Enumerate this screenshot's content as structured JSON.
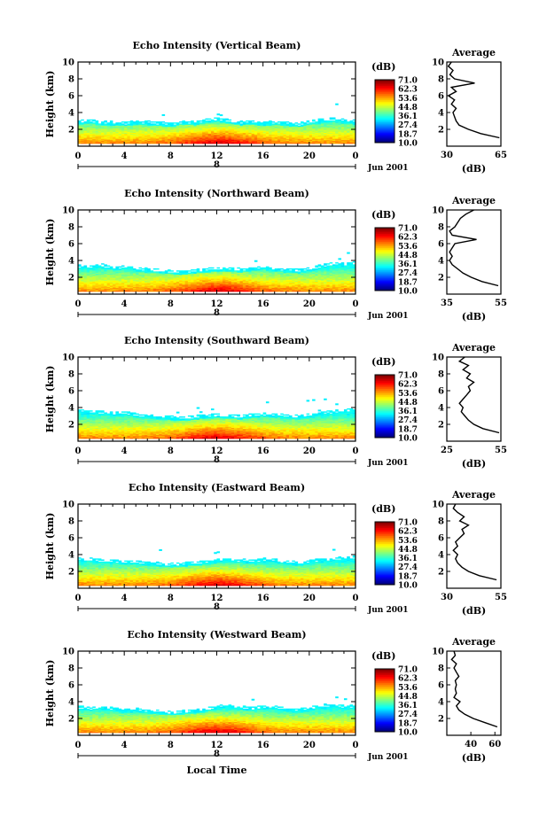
{
  "chart_data": [
    {
      "type": "heatmap",
      "title": "Echo Intensity (Vertical Beam)",
      "ylabel": "Height (km)",
      "ylim": [
        0,
        10
      ],
      "yticks": [
        "2",
        "4",
        "6",
        "8",
        "10"
      ],
      "xlim": [
        0,
        24
      ],
      "xticks": [
        "0",
        "4",
        "8",
        "12",
        "16",
        "20",
        "0"
      ],
      "xsub": "8",
      "date": "Jun 2001",
      "colorbar": {
        "unit": "(dB)",
        "labels": [
          "71.0",
          "62.3",
          "53.6",
          "44.8",
          "36.1",
          "27.4",
          "18.7",
          "10.0"
        ]
      },
      "layer_top_km": [
        2.8,
        2.9,
        2.7,
        2.7,
        2.6,
        2.8,
        2.7,
        2.6,
        2.5,
        2.8,
        2.7,
        3.0,
        3.1,
        2.9,
        2.7,
        2.8,
        2.6,
        2.8,
        2.6,
        2.5,
        2.8,
        3.0,
        3.1,
        2.9,
        2.8
      ],
      "profile": {
        "title": "Average",
        "xlabel": "(dB)",
        "xticks": [
          "30",
          "65"
        ],
        "xlim": [
          30,
          65
        ],
        "heights": [
          1.0,
          1.5,
          2.0,
          2.5,
          3.0,
          3.5,
          4.0,
          4.5,
          5.0,
          5.5,
          6.0,
          6.5,
          7.0,
          7.5,
          8.0,
          8.5,
          9.0,
          9.5,
          10.0
        ],
        "values": [
          64,
          52,
          44,
          38,
          36,
          35,
          34,
          36,
          33,
          35,
          31,
          36,
          33,
          48,
          35,
          32,
          34,
          31,
          33
        ]
      }
    },
    {
      "type": "heatmap",
      "title": "Echo Intensity (Northward Beam)",
      "ylabel": "Height (km)",
      "ylim": [
        0,
        10
      ],
      "yticks": [
        "2",
        "4",
        "6",
        "8",
        "10"
      ],
      "xlim": [
        0,
        24
      ],
      "xticks": [
        "0",
        "4",
        "8",
        "12",
        "16",
        "20",
        "0"
      ],
      "xsub": "8",
      "date": "Jun 2001",
      "colorbar": {
        "unit": "(dB)",
        "labels": [
          "71.0",
          "62.3",
          "53.6",
          "44.8",
          "36.1",
          "27.4",
          "18.7",
          "10.0"
        ]
      },
      "layer_top_km": [
        3.2,
        3.1,
        3.3,
        3.0,
        3.2,
        2.9,
        2.8,
        2.7,
        2.6,
        2.5,
        2.7,
        2.8,
        2.9,
        2.9,
        2.8,
        3.0,
        3.1,
        2.9,
        2.8,
        2.7,
        2.9,
        3.3,
        3.5,
        3.4,
        3.6
      ],
      "profile": {
        "title": "Average",
        "xlabel": "(dB)",
        "xticks": [
          "35",
          "55"
        ],
        "xlim": [
          35,
          55
        ],
        "heights": [
          1.0,
          1.5,
          2.0,
          2.5,
          3.0,
          3.5,
          4.0,
          4.5,
          5.0,
          5.5,
          6.0,
          6.5,
          7.0,
          7.5,
          8.0,
          8.5,
          9.0,
          9.5,
          10.0
        ],
        "values": [
          54,
          48,
          44,
          41,
          39,
          37,
          36,
          37,
          36,
          37,
          38,
          46,
          37,
          36,
          38,
          39,
          40,
          42,
          45
        ]
      }
    },
    {
      "type": "heatmap",
      "title": "Echo Intensity (Southward Beam)",
      "ylabel": "Height (km)",
      "ylim": [
        0,
        10
      ],
      "yticks": [
        "2",
        "4",
        "6",
        "8",
        "10"
      ],
      "xlim": [
        0,
        24
      ],
      "xticks": [
        "0",
        "4",
        "8",
        "12",
        "16",
        "20",
        "0"
      ],
      "xsub": "8",
      "date": "Jun 2001",
      "colorbar": {
        "unit": "(dB)",
        "labels": [
          "71.0",
          "62.3",
          "53.6",
          "44.8",
          "36.1",
          "27.4",
          "18.7",
          "10.0"
        ]
      },
      "layer_top_km": [
        3.5,
        3.4,
        3.3,
        3.2,
        3.3,
        3.0,
        2.9,
        2.8,
        2.7,
        2.6,
        2.8,
        2.9,
        3.0,
        2.9,
        2.8,
        3.0,
        3.1,
        3.0,
        2.9,
        2.8,
        3.0,
        3.2,
        3.4,
        3.5,
        3.8
      ],
      "profile": {
        "title": "Average",
        "xlabel": "(dB)",
        "xticks": [
          "25",
          "55"
        ],
        "xlim": [
          25,
          55
        ],
        "heights": [
          1.0,
          1.5,
          2.0,
          2.5,
          3.0,
          3.5,
          4.0,
          4.5,
          5.0,
          5.5,
          6.0,
          6.5,
          7.0,
          7.5,
          8.0,
          8.5,
          9.0,
          9.5,
          10.0
        ],
        "values": [
          54,
          45,
          40,
          37,
          35,
          33,
          34,
          32,
          34,
          36,
          38,
          37,
          40,
          36,
          38,
          34,
          37,
          32,
          35
        ]
      }
    },
    {
      "type": "heatmap",
      "title": "Echo Intensity (Eastward Beam)",
      "ylabel": "Height (km)",
      "ylim": [
        0,
        10
      ],
      "yticks": [
        "2",
        "4",
        "6",
        "8",
        "10"
      ],
      "xlim": [
        0,
        24
      ],
      "xticks": [
        "0",
        "4",
        "8",
        "12",
        "16",
        "20",
        "0"
      ],
      "xsub": "8",
      "date": "Jun 2001",
      "colorbar": {
        "unit": "(dB)",
        "labels": [
          "71.0",
          "62.3",
          "53.6",
          "44.8",
          "36.1",
          "27.4",
          "18.7",
          "10.0"
        ]
      },
      "layer_top_km": [
        3.4,
        3.3,
        3.2,
        3.1,
        3.0,
        3.0,
        2.9,
        2.8,
        2.7,
        2.8,
        2.9,
        3.0,
        3.2,
        3.3,
        3.2,
        3.1,
        3.3,
        3.2,
        3.0,
        2.9,
        3.1,
        3.3,
        3.4,
        3.5,
        3.6
      ],
      "profile": {
        "title": "Average",
        "xlabel": "(dB)",
        "xticks": [
          "30",
          "55"
        ],
        "xlim": [
          30,
          55
        ],
        "heights": [
          1.0,
          1.5,
          2.0,
          2.5,
          3.0,
          3.5,
          4.0,
          4.5,
          5.0,
          5.5,
          6.0,
          6.5,
          7.0,
          7.5,
          8.0,
          8.5,
          9.0,
          9.5,
          10.0
        ],
        "values": [
          53,
          45,
          40,
          37,
          35,
          34,
          35,
          33,
          35,
          34,
          36,
          38,
          37,
          40,
          36,
          38,
          35,
          33,
          34
        ]
      }
    },
    {
      "type": "heatmap",
      "title": "Echo Intensity (Westward Beam)",
      "ylabel": "Height (km)",
      "ylim": [
        0,
        10
      ],
      "yticks": [
        "2",
        "4",
        "6",
        "8",
        "10"
      ],
      "xlim": [
        0,
        24
      ],
      "xticks": [
        "0",
        "4",
        "8",
        "12",
        "16",
        "20",
        "0"
      ],
      "xsub": "8",
      "xlabel": "Local Time",
      "date": "Jun 2001",
      "colorbar": {
        "unit": "(dB)",
        "labels": [
          "71.0",
          "62.3",
          "53.6",
          "44.8",
          "36.1",
          "27.4",
          "18.7",
          "10.0"
        ]
      },
      "layer_top_km": [
        3.2,
        3.1,
        3.3,
        3.0,
        2.9,
        3.0,
        2.8,
        2.7,
        2.6,
        2.7,
        2.8,
        3.0,
        3.3,
        3.4,
        3.2,
        3.1,
        3.3,
        3.2,
        3.0,
        2.9,
        3.1,
        3.4,
        3.5,
        3.3,
        3.4
      ],
      "profile": {
        "title": "Average",
        "xlabel": "(dB)",
        "xticks": [
          "40",
          "60"
        ],
        "xlim": [
          20,
          65
        ],
        "heights": [
          1.0,
          1.5,
          2.0,
          2.5,
          3.0,
          3.5,
          4.0,
          4.5,
          5.0,
          5.5,
          6.0,
          6.5,
          7.0,
          7.5,
          8.0,
          8.5,
          9.0,
          9.5,
          10.0
        ],
        "values": [
          62,
          52,
          42,
          35,
          30,
          28,
          31,
          26,
          28,
          27,
          28,
          27,
          30,
          28,
          26,
          28,
          24,
          27,
          26
        ]
      }
    }
  ]
}
